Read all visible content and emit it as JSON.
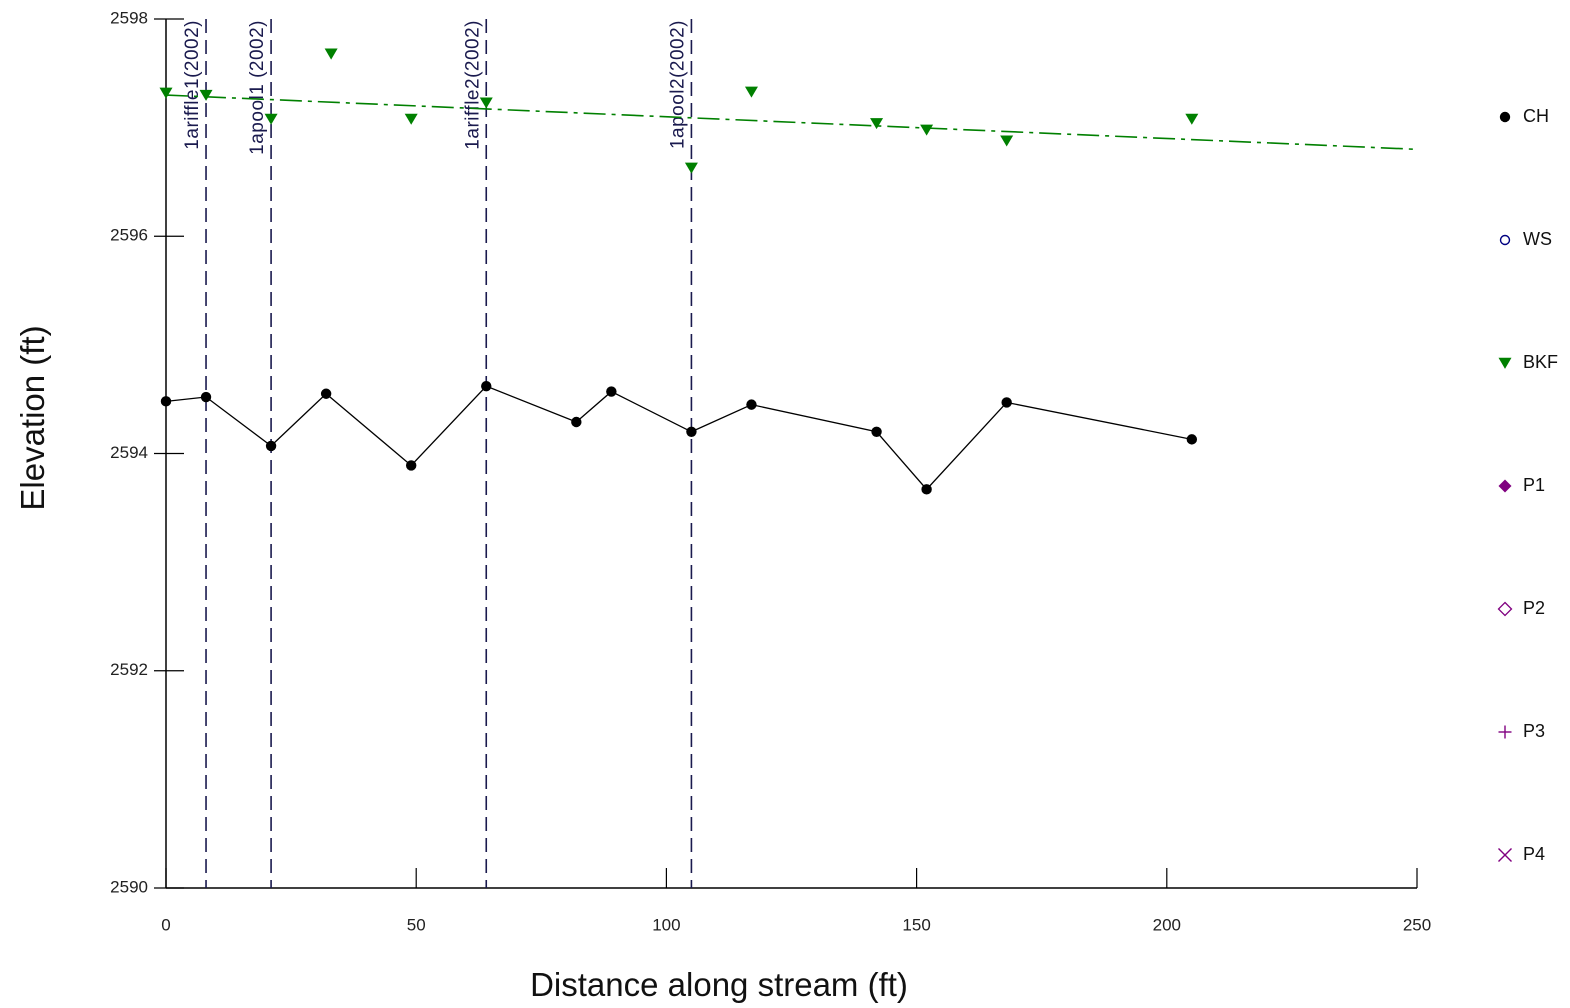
{
  "chart_data": {
    "type": "line",
    "xlabel": "Distance along stream (ft)",
    "ylabel": "Elevation (ft)",
    "xlim": [
      0,
      250
    ],
    "ylim": [
      2590,
      2598
    ],
    "x_ticks": [
      0,
      50,
      100,
      150,
      200,
      250
    ],
    "x_tick_labels": [
      "0",
      "50",
      "100",
      "150",
      "200",
      "250"
    ],
    "y_ticks": [
      2590,
      2592,
      2594,
      2596,
      2598
    ],
    "y_tick_labels": [
      "2590",
      "2592",
      "2594",
      "2596",
      "2598"
    ],
    "grid": false,
    "legend_position": "right",
    "legend": [
      {
        "name": "CH",
        "symbol": "filled-circle",
        "color": "#000000"
      },
      {
        "name": "WS",
        "symbol": "open-circle",
        "color": "#000080"
      },
      {
        "name": "BKF",
        "symbol": "filled-triangle-down",
        "color": "#008000"
      },
      {
        "name": "P1",
        "symbol": "filled-diamond",
        "color": "#800080"
      },
      {
        "name": "P2",
        "symbol": "open-diamond",
        "color": "#800080"
      },
      {
        "name": "P3",
        "symbol": "plus",
        "color": "#800080"
      },
      {
        "name": "P4",
        "symbol": "cross",
        "color": "#800080"
      }
    ],
    "series": [
      {
        "name": "CH",
        "style": "line-with-markers",
        "color": "#000000",
        "points": [
          [
            0,
            2594.48
          ],
          [
            8,
            2594.52
          ],
          [
            21,
            2594.07
          ],
          [
            32,
            2594.55
          ],
          [
            49,
            2593.89
          ],
          [
            64,
            2594.62
          ],
          [
            82,
            2594.29
          ],
          [
            89,
            2594.57
          ],
          [
            105,
            2594.2
          ],
          [
            117,
            2594.45
          ],
          [
            142,
            2594.2
          ],
          [
            152,
            2593.67
          ],
          [
            168,
            2594.47
          ],
          [
            205,
            2594.13
          ]
        ]
      },
      {
        "name": "BKF",
        "style": "markers",
        "color": "#008000",
        "points": [
          [
            0,
            2597.32
          ],
          [
            8,
            2597.3
          ],
          [
            21,
            2597.08
          ],
          [
            33,
            2597.68
          ],
          [
            49,
            2597.08
          ],
          [
            64,
            2597.23
          ],
          [
            105,
            2596.63
          ],
          [
            117,
            2597.33
          ],
          [
            142,
            2597.04
          ],
          [
            152,
            2596.98
          ],
          [
            168,
            2596.88
          ],
          [
            205,
            2597.08
          ]
        ]
      },
      {
        "style": "dash-dot-line",
        "color": "#008000",
        "points": [
          [
            0,
            2597.3
          ],
          [
            250,
            2596.8
          ]
        ]
      }
    ],
    "vertical_markers": [
      {
        "x": 8,
        "label": "1ariffle1(2002)"
      },
      {
        "x": 21,
        "label": "1apool1 (2002)"
      },
      {
        "x": 64,
        "label": "1ariffle2(2002)"
      },
      {
        "x": 105,
        "label": "1apool2(2002)"
      }
    ]
  }
}
